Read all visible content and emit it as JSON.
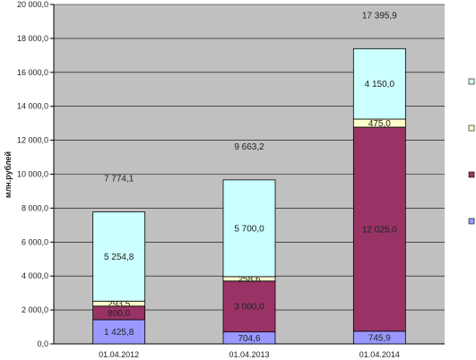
{
  "chart_data": {
    "type": "bar",
    "stacked": true,
    "categories": [
      "01.04.2012",
      "01.04.2013",
      "01.04.2014"
    ],
    "series": [
      {
        "values": [
          1425.8,
          704.6,
          745.9
        ],
        "value_labels": [
          "1 425,8",
          "704,6",
          "745,9"
        ],
        "color": "#9a99ff"
      },
      {
        "values": [
          800.0,
          3000.0,
          12025.0
        ],
        "value_labels": [
          "800,0",
          "3 000,0",
          "12 025,0"
        ],
        "color": "#993366"
      },
      {
        "values": [
          293.5,
          258.6,
          475.0
        ],
        "value_labels": [
          "293,5",
          "258,6",
          "475,0"
        ],
        "color": "#ffffcc"
      },
      {
        "values": [
          5254.8,
          5700.0,
          4150.0
        ],
        "value_labels": [
          "5 254,8",
          "5 700,0",
          "4 150,0"
        ],
        "color": "#ccffff"
      }
    ],
    "totals": [
      "7 774,1",
      "9 663,2",
      "17 395,9"
    ],
    "ylabel": "млн.рублей",
    "ylim": [
      0,
      20000
    ],
    "yticks": [
      0,
      2000,
      4000,
      6000,
      8000,
      10000,
      12000,
      14000,
      16000,
      18000,
      20000
    ],
    "ytick_labels": [
      "0,0",
      "2 000,0",
      "4 000,0",
      "6 000,0",
      "8 000,0",
      "10 000,0",
      "12 000,0",
      "14 000,0",
      "16 000,0",
      "18 000,0",
      "20 000,0"
    ],
    "plot_background": "#c0c0c0",
    "grid": true,
    "legend": "right",
    "legend_order": [
      3,
      2,
      1,
      0
    ]
  }
}
